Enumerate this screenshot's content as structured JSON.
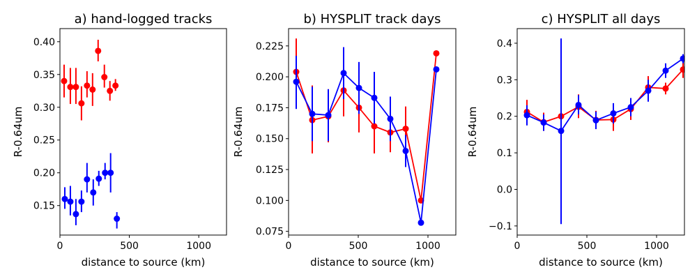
{
  "chart_data": [
    {
      "type": "scatter",
      "title": "a) hand-logged tracks",
      "xlabel": "distance to source (km)",
      "ylabel": "R-0.64um",
      "xlim": [
        0,
        1200
      ],
      "ylim": [
        0.105,
        0.42
      ],
      "xticks": [
        0,
        500,
        1000
      ],
      "xtick_labels": [
        "0",
        "500",
        "1000"
      ],
      "yticks": [
        0.15,
        0.2,
        0.25,
        0.3,
        0.35,
        0.4
      ],
      "ytick_labels": [
        "0.15",
        "0.20",
        "0.25",
        "0.30",
        "0.35",
        "0.40"
      ],
      "series": [
        {
          "name": "red",
          "color": "#ff0000",
          "x": [
            30,
            75,
            115,
            155,
            195,
            235,
            275,
            320,
            360,
            400
          ],
          "y": [
            0.34,
            0.331,
            0.331,
            0.306,
            0.333,
            0.327,
            0.386,
            0.346,
            0.325,
            0.333
          ],
          "err_lo": [
            0.315,
            0.305,
            0.305,
            0.28,
            0.315,
            0.302,
            0.37,
            0.33,
            0.31,
            0.325
          ],
          "err_hi": [
            0.365,
            0.36,
            0.36,
            0.332,
            0.355,
            0.352,
            0.403,
            0.365,
            0.34,
            0.343
          ]
        },
        {
          "name": "blue",
          "color": "#0000ff",
          "x": [
            35,
            75,
            115,
            155,
            195,
            240,
            280,
            325,
            365,
            410
          ],
          "y": [
            0.16,
            0.156,
            0.137,
            0.156,
            0.19,
            0.17,
            0.191,
            0.2,
            0.2,
            0.13
          ],
          "err_lo": [
            0.145,
            0.135,
            0.12,
            0.14,
            0.17,
            0.15,
            0.18,
            0.19,
            0.17,
            0.115
          ],
          "err_hi": [
            0.178,
            0.18,
            0.16,
            0.173,
            0.215,
            0.19,
            0.203,
            0.215,
            0.23,
            0.14
          ]
        }
      ]
    },
    {
      "type": "line",
      "title": "b) HYSPLIT track days",
      "xlabel": "distance to source (km)",
      "ylabel": "R-0.64um",
      "xlim": [
        0,
        1200
      ],
      "ylim": [
        0.072,
        0.239
      ],
      "xticks": [
        0,
        500,
        1000
      ],
      "xtick_labels": [
        "0",
        "500",
        "1000"
      ],
      "yticks": [
        0.075,
        0.1,
        0.125,
        0.15,
        0.175,
        0.2,
        0.225
      ],
      "ytick_labels": [
        "0.075",
        "0.100",
        "0.125",
        "0.150",
        "0.175",
        "0.200",
        "0.225"
      ],
      "series": [
        {
          "name": "red",
          "color": "#ff0000",
          "x": [
            55,
            170,
            285,
            395,
            505,
            615,
            730,
            840,
            950,
            1060
          ],
          "y": [
            0.204,
            0.165,
            0.168,
            0.189,
            0.175,
            0.16,
            0.155,
            0.158,
            0.1,
            0.219
          ],
          "err_lo": [
            0.178,
            0.138,
            0.147,
            0.168,
            0.155,
            0.138,
            0.139,
            0.132,
            0.1,
            0.219
          ],
          "err_hi": [
            0.231,
            0.193,
            0.19,
            0.21,
            0.196,
            0.18,
            0.171,
            0.176,
            0.1,
            0.219
          ]
        },
        {
          "name": "blue",
          "color": "#0000ff",
          "x": [
            55,
            170,
            285,
            395,
            505,
            615,
            730,
            840,
            950,
            1060
          ],
          "y": [
            0.196,
            0.17,
            0.169,
            0.203,
            0.191,
            0.183,
            0.166,
            0.14,
            0.082,
            0.206
          ],
          "err_lo": [
            0.174,
            0.148,
            0.148,
            0.182,
            0.17,
            0.162,
            0.148,
            0.127,
            0.082,
            0.206
          ],
          "err_hi": [
            0.217,
            0.192,
            0.19,
            0.224,
            0.212,
            0.204,
            0.184,
            0.153,
            0.082,
            0.206
          ]
        }
      ]
    },
    {
      "type": "line",
      "title": "c) HYSPLIT all days",
      "xlabel": "distance to source (km)",
      "ylabel": "R-0.64um",
      "xlim": [
        0,
        1200
      ],
      "ylim": [
        -0.125,
        0.44
      ],
      "xticks": [
        0,
        500,
        1000
      ],
      "xtick_labels": [
        "0",
        "500",
        "1000"
      ],
      "yticks": [
        -0.1,
        0.0,
        0.1,
        0.2,
        0.3,
        0.4
      ],
      "ytick_labels": [
        "−0.1",
        "0.0",
        "0.1",
        "0.2",
        "0.3",
        "0.4"
      ],
      "series": [
        {
          "name": "red",
          "color": "#ff0000",
          "x": [
            70,
            190,
            315,
            440,
            565,
            690,
            815,
            940,
            1065,
            1190
          ],
          "y": [
            0.212,
            0.184,
            0.2,
            0.226,
            0.19,
            0.191,
            0.22,
            0.279,
            0.276,
            0.328
          ],
          "err_lo": [
            0.18,
            0.16,
            0.17,
            0.195,
            0.165,
            0.16,
            0.19,
            0.245,
            0.26,
            0.305
          ],
          "err_hi": [
            0.245,
            0.21,
            0.23,
            0.26,
            0.215,
            0.22,
            0.25,
            0.31,
            0.292,
            0.35
          ]
        },
        {
          "name": "blue",
          "color": "#0000ff",
          "x": [
            70,
            190,
            315,
            440,
            565,
            690,
            815,
            940,
            1065,
            1190
          ],
          "y": [
            0.203,
            0.183,
            0.16,
            0.231,
            0.189,
            0.208,
            0.225,
            0.27,
            0.325,
            0.358
          ],
          "err_lo": [
            0.175,
            0.16,
            -0.095,
            0.205,
            0.165,
            0.18,
            0.2,
            0.24,
            0.305,
            0.345
          ],
          "err_hi": [
            0.23,
            0.205,
            0.413,
            0.258,
            0.213,
            0.236,
            0.25,
            0.3,
            0.345,
            0.37
          ]
        }
      ]
    }
  ]
}
